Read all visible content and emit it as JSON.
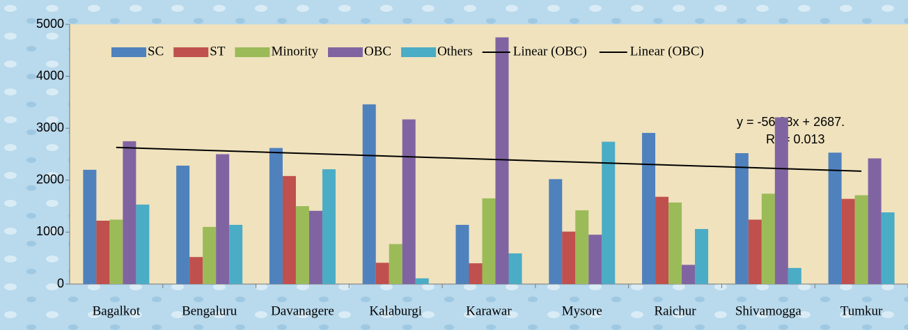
{
  "chart_data": {
    "type": "bar",
    "categories": [
      "Bagalkot",
      "Bengaluru",
      "Davanagere",
      "Kalaburgi",
      "Karawar",
      "Mysore",
      "Raichur",
      "Shivamogga",
      "Tumkur"
    ],
    "series": [
      {
        "name": "SC",
        "color": "#4f81bd",
        "values": [
          2200,
          2280,
          2620,
          3460,
          1140,
          2020,
          2910,
          2520,
          2530
        ]
      },
      {
        "name": "ST",
        "color": "#c0504d",
        "values": [
          1220,
          520,
          2080,
          410,
          400,
          1010,
          1680,
          1240,
          1640
        ]
      },
      {
        "name": "Minority",
        "color": "#9bbb59",
        "values": [
          1240,
          1100,
          1500,
          770,
          1650,
          1420,
          1570,
          1740,
          1710
        ]
      },
      {
        "name": "OBC",
        "color": "#8064a2",
        "values": [
          2750,
          2500,
          1410,
          3170,
          4750,
          950,
          370,
          3210,
          2420
        ]
      },
      {
        "name": "Others",
        "color": "#4bacc6",
        "values": [
          1530,
          1140,
          2210,
          110,
          590,
          2740,
          1060,
          310,
          1380
        ]
      }
    ],
    "trendlines": [
      {
        "name": "Linear (OBC)",
        "color": "#000000",
        "values": [
          2630,
          2174
        ]
      },
      {
        "name": "Linear (OBC)",
        "color": "#000000"
      }
    ],
    "annotations": [
      "y = -56.98x + 2687.",
      "R² = 0.013"
    ],
    "ylim": [
      0,
      5000
    ],
    "yticks": [
      0,
      1000,
      2000,
      3000,
      4000,
      5000
    ],
    "grid": false
  }
}
